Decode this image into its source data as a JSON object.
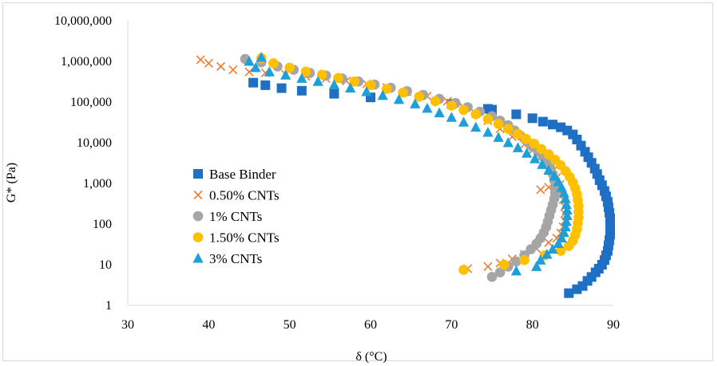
{
  "chart_data": {
    "type": "scatter",
    "xlabel": "δ (°C)",
    "ylabel": "G* (Pa)",
    "xlim": [
      30,
      90
    ],
    "ylim": [
      1,
      10000000
    ],
    "y_scale": "log",
    "grid": false,
    "legend_position": "left-bottom inside",
    "x_ticks": [
      "30",
      "40",
      "50",
      "60",
      "70",
      "80",
      "90"
    ],
    "y_ticks": [
      "1",
      "10",
      "100",
      "1,000",
      "10,000",
      "100,000",
      "1,000,000",
      "10,000,000"
    ],
    "series": [
      {
        "name": "Base Binder",
        "marker": "square",
        "color": "#1f6fc5",
        "points": [
          [
            84.5,
            2
          ],
          [
            85.5,
            2.5
          ],
          [
            86.2,
            3
          ],
          [
            86.8,
            4
          ],
          [
            87.3,
            5
          ],
          [
            87.8,
            6.5
          ],
          [
            88.2,
            8
          ],
          [
            88.6,
            10
          ],
          [
            88.9,
            13
          ],
          [
            89.1,
            17
          ],
          [
            89.3,
            22
          ],
          [
            89.4,
            30
          ],
          [
            89.5,
            40
          ],
          [
            89.6,
            55
          ],
          [
            89.6,
            75
          ],
          [
            89.6,
            100
          ],
          [
            89.6,
            140
          ],
          [
            89.5,
            190
          ],
          [
            89.4,
            260
          ],
          [
            89.3,
            350
          ],
          [
            89.1,
            480
          ],
          [
            88.9,
            650
          ],
          [
            88.6,
            900
          ],
          [
            88.3,
            1200
          ],
          [
            88.0,
            1700
          ],
          [
            87.7,
            2300
          ],
          [
            87.3,
            3200
          ],
          [
            86.9,
            4400
          ],
          [
            86.5,
            6000
          ],
          [
            86.0,
            8500
          ],
          [
            85.5,
            12000
          ],
          [
            85.0,
            16000
          ],
          [
            84.3,
            20000
          ],
          [
            83.5,
            24000
          ],
          [
            82.5,
            28000
          ],
          [
            81.3,
            33000
          ],
          [
            80.0,
            40000
          ],
          [
            78.0,
            50000
          ],
          [
            75.0,
            65000
          ],
          [
            74.5,
            68000
          ],
          [
            70.0,
            90000
          ],
          [
            60.0,
            130000
          ],
          [
            55.5,
            160000
          ],
          [
            51.5,
            190000
          ],
          [
            49.0,
            220000
          ],
          [
            47.0,
            260000
          ],
          [
            45.5,
            300000
          ]
        ]
      },
      {
        "name": "0.50% CNTs",
        "marker": "x",
        "color": "#ed7d31",
        "points": [
          [
            39.0,
            1100000
          ],
          [
            40.0,
            900000
          ],
          [
            41.5,
            750000
          ],
          [
            43.0,
            620000
          ],
          [
            45.0,
            550000
          ],
          [
            47.0,
            520000
          ],
          [
            49.5,
            480000
          ],
          [
            52.0,
            430000
          ],
          [
            54.5,
            380000
          ],
          [
            57.0,
            330000
          ],
          [
            59.5,
            280000
          ],
          [
            62.0,
            230000
          ],
          [
            64.5,
            180000
          ],
          [
            67.0,
            140000
          ],
          [
            69.5,
            105000
          ],
          [
            71.5,
            75000
          ],
          [
            73.0,
            52000
          ],
          [
            74.5,
            35000
          ],
          [
            76.0,
            22000
          ],
          [
            77.5,
            14000
          ],
          [
            79.0,
            9000
          ],
          [
            80.0,
            6500
          ],
          [
            81.0,
            4500
          ],
          [
            81.8,
            3000
          ],
          [
            82.5,
            2000
          ],
          [
            83.0,
            1400
          ],
          [
            83.4,
            950
          ],
          [
            82.0,
            800
          ],
          [
            81.0,
            700
          ],
          [
            83.5,
            600
          ],
          [
            83.8,
            400
          ],
          [
            84.0,
            270
          ],
          [
            84.0,
            180
          ],
          [
            84.0,
            120
          ],
          [
            83.8,
            85
          ],
          [
            83.5,
            60
          ],
          [
            83.0,
            45
          ],
          [
            82.0,
            35
          ],
          [
            80.5,
            25
          ],
          [
            79.0,
            18
          ],
          [
            77.5,
            14
          ],
          [
            76.0,
            11
          ],
          [
            74.5,
            9
          ],
          [
            72.0,
            8
          ]
        ]
      },
      {
        "name": "1% CNTs",
        "marker": "circle",
        "color": "#a5a5a5",
        "points": [
          [
            44.5,
            1150000
          ],
          [
            46.5,
            950000
          ],
          [
            48.5,
            750000
          ],
          [
            50.5,
            620000
          ],
          [
            52.5,
            520000
          ],
          [
            54.5,
            450000
          ],
          [
            56.5,
            380000
          ],
          [
            58.5,
            320000
          ],
          [
            60.5,
            270000
          ],
          [
            62.5,
            225000
          ],
          [
            64.5,
            185000
          ],
          [
            66.5,
            150000
          ],
          [
            68.5,
            120000
          ],
          [
            70.5,
            95000
          ],
          [
            72.0,
            75000
          ],
          [
            73.5,
            58000
          ],
          [
            75.0,
            45000
          ],
          [
            76.0,
            35000
          ],
          [
            77.0,
            27000
          ],
          [
            77.8,
            20000
          ],
          [
            78.5,
            15000
          ],
          [
            79.3,
            11000
          ],
          [
            80.0,
            8000
          ],
          [
            80.7,
            6000
          ],
          [
            81.3,
            4500
          ],
          [
            81.8,
            3300
          ],
          [
            82.2,
            2400
          ],
          [
            82.5,
            1700
          ],
          [
            82.7,
            1200
          ],
          [
            82.8,
            850
          ],
          [
            82.8,
            600
          ],
          [
            82.7,
            420
          ],
          [
            82.5,
            300
          ],
          [
            82.3,
            220
          ],
          [
            82.1,
            160
          ],
          [
            81.9,
            115
          ],
          [
            81.7,
            85
          ],
          [
            81.4,
            62
          ],
          [
            81.0,
            45
          ],
          [
            80.5,
            33
          ],
          [
            79.8,
            24
          ],
          [
            79.0,
            17
          ],
          [
            78.0,
            12
          ],
          [
            77.0,
            9
          ],
          [
            76.0,
            6.5
          ],
          [
            75.0,
            5
          ]
        ]
      },
      {
        "name": "1.50% CNTs",
        "marker": "circle",
        "color": "#ffc000",
        "points": [
          [
            46.5,
            1200000
          ],
          [
            48.0,
            900000
          ],
          [
            50.0,
            700000
          ],
          [
            52.0,
            560000
          ],
          [
            54.0,
            470000
          ],
          [
            56.0,
            390000
          ],
          [
            58.0,
            320000
          ],
          [
            60.0,
            260000
          ],
          [
            62.0,
            210000
          ],
          [
            64.0,
            170000
          ],
          [
            66.0,
            135000
          ],
          [
            68.0,
            105000
          ],
          [
            70.0,
            82000
          ],
          [
            71.5,
            64000
          ],
          [
            73.0,
            50000
          ],
          [
            74.5,
            38000
          ],
          [
            75.8,
            29000
          ],
          [
            77.0,
            22000
          ],
          [
            78.2,
            16500
          ],
          [
            79.2,
            12500
          ],
          [
            80.2,
            9500
          ],
          [
            81.1,
            7000
          ],
          [
            82.0,
            5200
          ],
          [
            82.8,
            3800
          ],
          [
            83.5,
            2800
          ],
          [
            84.1,
            2000
          ],
          [
            84.6,
            1450
          ],
          [
            85.0,
            1050
          ],
          [
            85.3,
            750
          ],
          [
            85.5,
            540
          ],
          [
            85.6,
            390
          ],
          [
            85.7,
            280
          ],
          [
            85.7,
            200
          ],
          [
            85.7,
            145
          ],
          [
            85.6,
            105
          ],
          [
            85.5,
            75
          ],
          [
            85.3,
            54
          ],
          [
            85.0,
            39
          ],
          [
            84.5,
            29
          ],
          [
            83.5,
            22
          ],
          [
            81.5,
            17
          ],
          [
            79.0,
            13
          ],
          [
            76.5,
            10
          ],
          [
            71.5,
            7.5
          ]
        ]
      },
      {
        "name": "3% CNTs",
        "marker": "triangle",
        "color": "#1f9fd8",
        "points": [
          [
            45.0,
            1000000
          ],
          [
            46.5,
            1250000
          ],
          [
            45.8,
            700000
          ],
          [
            47.5,
            550000
          ],
          [
            49.5,
            460000
          ],
          [
            51.5,
            380000
          ],
          [
            53.5,
            320000
          ],
          [
            55.5,
            265000
          ],
          [
            57.5,
            220000
          ],
          [
            59.5,
            180000
          ],
          [
            61.5,
            145000
          ],
          [
            63.5,
            115000
          ],
          [
            65.5,
            90000
          ],
          [
            67.0,
            70000
          ],
          [
            68.5,
            54000
          ],
          [
            70.0,
            42000
          ],
          [
            71.5,
            32000
          ],
          [
            73.0,
            24000
          ],
          [
            74.5,
            18000
          ],
          [
            75.8,
            13500
          ],
          [
            77.0,
            10000
          ],
          [
            78.2,
            7500
          ],
          [
            79.3,
            5500
          ],
          [
            80.3,
            4000
          ],
          [
            81.2,
            2900
          ],
          [
            82.0,
            2100
          ],
          [
            82.7,
            1500
          ],
          [
            83.2,
            1100
          ],
          [
            83.6,
            800
          ],
          [
            83.9,
            580
          ],
          [
            84.1,
            420
          ],
          [
            84.2,
            300
          ],
          [
            84.3,
            220
          ],
          [
            84.3,
            160
          ],
          [
            84.2,
            115
          ],
          [
            84.1,
            85
          ],
          [
            83.9,
            62
          ],
          [
            83.6,
            45
          ],
          [
            83.2,
            33
          ],
          [
            82.5,
            24
          ],
          [
            81.8,
            18
          ],
          [
            81.0,
            13
          ],
          [
            80.5,
            9
          ],
          [
            78.0,
            7
          ]
        ]
      }
    ]
  }
}
